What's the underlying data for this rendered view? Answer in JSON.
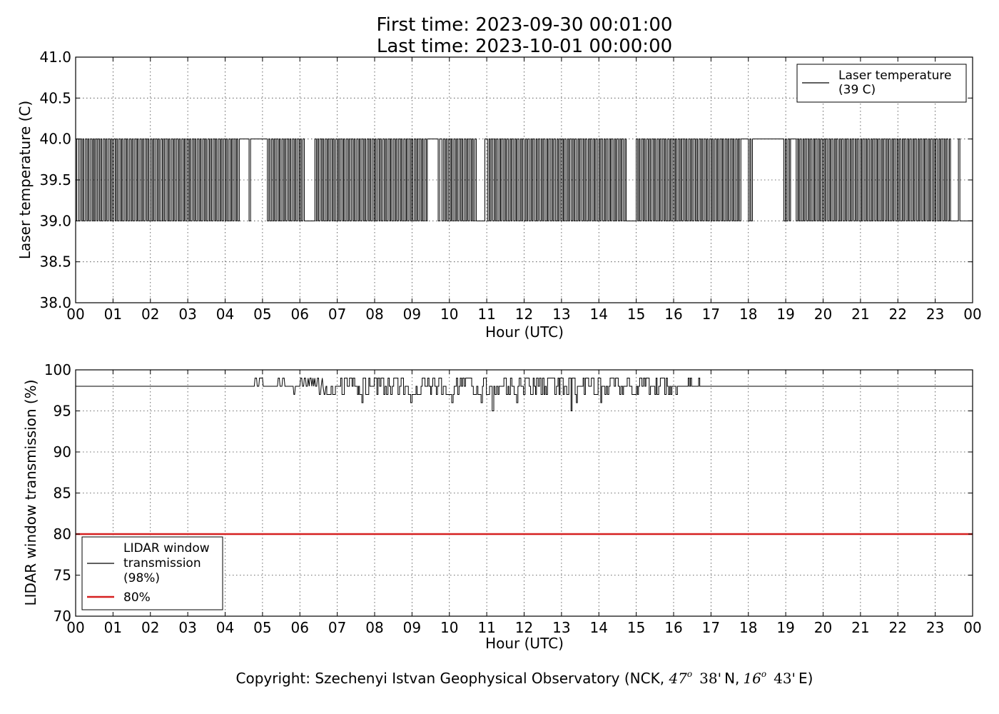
{
  "header": {
    "title_line1": "First time: 2023-09-30 00:01:00",
    "title_line2": "Last time: 2023-10-01 00:00:00"
  },
  "footer": {
    "copyright_prefix": "Copyright: Szechenyi Istvan Geophysical Observatory (NCK, ",
    "lat_deg": "47",
    "lat_min": "38'",
    "lat_dir": "N,",
    "lon_deg": "16",
    "lon_min": "43'",
    "lon_dir": "E)",
    "degree_symbol": "o"
  },
  "colors": {
    "series_line": "#000000",
    "threshold": "#d62020",
    "background": "#ffffff"
  },
  "chart_data": [
    {
      "type": "line",
      "xlabel": "Hour (UTC)",
      "ylabel": "Laser temperature (C)",
      "xlim": [
        0,
        24
      ],
      "ylim": [
        38.0,
        41.0
      ],
      "grid": true,
      "legend_position": "top-right",
      "x_tick_labels": [
        "00",
        "01",
        "02",
        "03",
        "04",
        "05",
        "06",
        "07",
        "08",
        "09",
        "10",
        "11",
        "12",
        "13",
        "14",
        "15",
        "16",
        "17",
        "18",
        "19",
        "20",
        "21",
        "22",
        "23",
        "00"
      ],
      "y_tick_labels": [
        "38.0",
        "38.5",
        "39.0",
        "39.5",
        "40.0",
        "40.5",
        "41.0"
      ],
      "y_ticks": [
        38.0,
        38.5,
        39.0,
        39.5,
        40.0,
        40.5,
        41.0
      ],
      "series": [
        {
          "name_line1": "Laser temperature",
          "name_line2": "(39 C)",
          "step_values": [
            39.0,
            40.0
          ],
          "toggle_times_h": [
            0.0,
            0.03,
            0.08,
            0.12,
            0.16,
            0.19,
            0.22,
            0.26,
            0.3,
            0.33,
            0.36,
            0.4,
            0.44,
            0.47,
            0.5,
            0.53,
            0.57,
            0.6,
            0.64,
            0.67,
            0.7,
            0.74,
            0.78,
            0.81,
            0.84,
            0.88,
            0.92,
            0.95,
            0.98,
            1.02,
            1.06,
            1.09,
            1.12,
            1.16,
            1.2,
            1.23,
            1.26,
            1.3,
            1.34,
            1.37,
            1.4,
            1.44,
            1.48,
            1.51,
            1.54,
            1.58,
            1.62,
            1.65,
            1.68,
            1.72,
            1.76,
            1.79,
            1.82,
            1.86,
            1.9,
            1.93,
            1.96,
            2.0,
            2.04,
            2.07,
            2.1,
            2.14,
            2.18,
            2.21,
            2.24,
            2.28,
            2.32,
            2.35,
            2.38,
            2.42,
            2.46,
            2.49,
            2.52,
            2.56,
            2.6,
            2.63,
            2.66,
            2.7,
            2.74,
            2.77,
            2.8,
            2.84,
            2.88,
            2.91,
            2.94,
            2.98,
            3.02,
            3.05,
            3.08,
            3.12,
            3.16,
            3.19,
            3.22,
            3.26,
            3.3,
            3.33,
            3.36,
            3.4,
            3.44,
            3.47,
            3.5,
            3.54,
            3.58,
            3.61,
            3.64,
            3.68,
            3.72,
            3.75,
            3.78,
            3.82,
            3.86,
            3.89,
            3.92,
            3.96,
            4.0,
            4.03,
            4.06,
            4.1,
            4.14,
            4.17,
            4.2,
            4.24,
            4.28,
            4.31,
            4.34,
            4.38,
            4.64,
            4.68,
            5.13,
            5.17,
            5.2,
            5.24,
            5.28,
            5.31,
            5.34,
            5.38,
            5.42,
            5.45,
            5.48,
            5.52,
            5.56,
            5.59,
            5.62,
            5.66,
            5.7,
            5.73,
            5.76,
            5.8,
            5.84,
            5.87,
            5.9,
            5.94,
            5.98,
            6.01,
            6.04,
            6.08,
            6.12,
            6.4,
            6.44,
            6.47,
            6.5,
            6.54,
            6.58,
            6.61,
            6.64,
            6.68,
            6.72,
            6.75,
            6.78,
            6.82,
            6.86,
            6.89,
            6.92,
            6.96,
            7.0,
            7.03,
            7.06,
            7.1,
            7.14,
            7.17,
            7.2,
            7.24,
            7.28,
            7.31,
            7.34,
            7.38,
            7.42,
            7.45,
            7.48,
            7.52,
            7.56,
            7.59,
            7.62,
            7.66,
            7.7,
            7.73,
            7.76,
            7.8,
            7.84,
            7.87,
            7.9,
            7.94,
            7.98,
            8.01,
            8.04,
            8.08,
            8.12,
            8.15,
            8.18,
            8.22,
            8.26,
            8.29,
            8.32,
            8.36,
            8.4,
            8.43,
            8.46,
            8.5,
            8.54,
            8.57,
            8.6,
            8.64,
            8.68,
            8.71,
            8.74,
            8.78,
            8.82,
            8.85,
            8.88,
            8.92,
            8.96,
            8.99,
            9.02,
            9.06,
            9.1,
            9.13,
            9.16,
            9.2,
            9.24,
            9.27,
            9.3,
            9.34,
            9.38,
            9.41,
            9.7,
            9.74,
            9.8,
            9.84,
            9.88,
            9.91,
            9.94,
            9.98,
            10.02,
            10.05,
            10.08,
            10.12,
            10.16,
            10.19,
            10.22,
            10.26,
            10.3,
            10.33,
            10.36,
            10.4,
            10.44,
            10.47,
            10.5,
            10.54,
            10.58,
            10.61,
            10.64,
            10.68,
            10.72,
            10.95,
            11.02,
            11.06,
            11.09,
            11.12,
            11.16,
            11.2,
            11.23,
            11.26,
            11.3,
            11.34,
            11.37,
            11.4,
            11.44,
            11.48,
            11.51,
            11.54,
            11.58,
            11.62,
            11.65,
            11.68,
            11.72,
            11.76,
            11.79,
            11.82,
            11.86,
            11.9,
            11.93,
            11.96,
            12.0,
            12.04,
            12.07,
            12.1,
            12.14,
            12.18,
            12.21,
            12.24,
            12.28,
            12.32,
            12.35,
            12.38,
            12.42,
            12.46,
            12.49,
            12.52,
            12.56,
            12.6,
            12.63,
            12.66,
            12.7,
            12.74,
            12.77,
            12.8,
            12.84,
            12.88,
            12.91,
            12.94,
            12.98,
            13.02,
            13.05,
            13.08,
            13.12,
            13.16,
            13.19,
            13.22,
            13.26,
            13.3,
            13.33,
            13.36,
            13.4,
            13.44,
            13.47,
            13.5,
            13.54,
            13.58,
            13.61,
            13.64,
            13.68,
            13.72,
            13.75,
            13.78,
            13.82,
            13.86,
            13.89,
            13.92,
            13.96,
            14.0,
            14.03,
            14.06,
            14.1,
            14.14,
            14.17,
            14.2,
            14.24,
            14.28,
            14.31,
            14.34,
            14.38,
            14.42,
            14.45,
            14.48,
            14.52,
            14.56,
            14.59,
            14.62,
            14.66,
            14.7,
            14.73,
            15.0,
            15.04,
            15.07,
            15.1,
            15.14,
            15.18,
            15.21,
            15.24,
            15.28,
            15.32,
            15.35,
            15.38,
            15.42,
            15.46,
            15.49,
            15.52,
            15.56,
            15.6,
            15.63,
            15.66,
            15.7,
            15.74,
            15.77,
            15.8,
            15.84,
            15.88,
            15.91,
            15.94,
            15.98,
            16.02,
            16.05,
            16.08,
            16.12,
            16.16,
            16.19,
            16.22,
            16.26,
            16.3,
            16.33,
            16.36,
            16.4,
            16.44,
            16.47,
            16.5,
            16.54,
            16.58,
            16.61,
            16.64,
            16.68,
            16.72,
            16.75,
            16.78,
            16.82,
            16.86,
            16.89,
            16.92,
            16.96,
            17.0,
            17.03,
            17.06,
            17.1,
            17.14,
            17.17,
            17.2,
            17.24,
            17.28,
            17.31,
            17.34,
            17.38,
            17.42,
            17.45,
            17.48,
            17.52,
            17.56,
            17.59,
            17.62,
            17.66,
            17.7,
            17.73,
            17.76,
            17.8,
            18.0,
            18.04,
            18.07,
            18.11,
            18.95,
            18.99,
            19.02,
            19.06,
            19.1,
            19.13,
            19.28,
            19.32,
            19.35,
            19.38,
            19.42,
            19.46,
            19.49,
            19.52,
            19.56,
            19.6,
            19.63,
            19.66,
            19.7,
            19.74,
            19.77,
            19.8,
            19.84,
            19.88,
            19.91,
            19.94,
            19.98,
            20.02,
            20.05,
            20.08,
            20.12,
            20.16,
            20.19,
            20.22,
            20.26,
            20.3,
            20.33,
            20.36,
            20.4,
            20.44,
            20.47,
            20.5,
            20.54,
            20.58,
            20.61,
            20.64,
            20.68,
            20.72,
            20.75,
            20.78,
            20.82,
            20.86,
            20.89,
            20.92,
            20.96,
            21.0,
            21.03,
            21.06,
            21.1,
            21.14,
            21.17,
            21.2,
            21.24,
            21.28,
            21.31,
            21.34,
            21.38,
            21.42,
            21.45,
            21.48,
            21.52,
            21.56,
            21.59,
            21.62,
            21.66,
            21.7,
            21.73,
            21.76,
            21.8,
            21.84,
            21.87,
            21.9,
            21.94,
            21.98,
            22.01,
            22.04,
            22.08,
            22.12,
            22.15,
            22.18,
            22.22,
            22.26,
            22.29,
            22.32,
            22.36,
            22.4,
            22.43,
            22.46,
            22.5,
            22.54,
            22.57,
            22.6,
            22.64,
            22.68,
            22.71,
            22.74,
            22.78,
            22.82,
            22.85,
            22.88,
            22.92,
            22.96,
            22.99,
            23.02,
            23.06,
            23.1,
            23.13,
            23.16,
            23.2,
            23.24,
            23.27,
            23.3,
            23.34,
            23.38,
            23.41,
            23.62,
            23.66,
            24.0
          ]
        }
      ]
    },
    {
      "type": "line",
      "xlabel": "Hour (UTC)",
      "ylabel": "LIDAR window transmission (%)",
      "xlim": [
        0,
        24
      ],
      "ylim": [
        70,
        100
      ],
      "grid": true,
      "legend_position": "bottom-left",
      "x_tick_labels": [
        "00",
        "01",
        "02",
        "03",
        "04",
        "05",
        "06",
        "07",
        "08",
        "09",
        "10",
        "11",
        "12",
        "13",
        "14",
        "15",
        "16",
        "17",
        "18",
        "19",
        "20",
        "21",
        "22",
        "23",
        "00"
      ],
      "y_tick_labels": [
        "70",
        "75",
        "80",
        "85",
        "90",
        "95",
        "100"
      ],
      "y_ticks": [
        70,
        75,
        80,
        85,
        90,
        95,
        100
      ],
      "series": [
        {
          "name_line1": "LIDAR window",
          "name_line2": "transmission",
          "name_line3": "(98%)",
          "baseline_value": 98,
          "segments": [
            {
              "x": [
                0.0,
                4.78,
                4.8,
                4.84,
                4.86,
                4.9,
                4.92,
                5.0,
                5.02,
                5.06,
                5.08,
                5.4,
                5.42,
                5.45,
                5.47,
                5.52,
                5.54,
                5.58,
                5.6,
                5.82,
                5.84,
                5.86,
                5.88,
                6.0,
                6.02,
                6.05,
                6.07,
                6.1,
                6.12,
                6.15,
                6.17,
                6.2,
                6.22,
                6.25,
                6.27,
                6.3,
                6.32,
                6.35,
                6.37,
                6.4,
                6.42,
                6.45,
                6.47,
                6.5,
                6.52,
                6.55,
                6.57,
                6.6,
                6.62,
                6.65,
                6.67,
                6.7,
                6.72
              ],
              "y": [
                98,
                98,
                99,
                99,
                98,
                98,
                99,
                99,
                98,
                98,
                98,
                98,
                99,
                99,
                98,
                98,
                99,
                99,
                98,
                98,
                97,
                97,
                98,
                98,
                99,
                99,
                98,
                98,
                99,
                99,
                98,
                98,
                99,
                98,
                99,
                99,
                98,
                99,
                98,
                99,
                98,
                98,
                99,
                99,
                97,
                97,
                98,
                99,
                98,
                97,
                97,
                98,
                98
              ]
            }
          ],
          "dense_region": {
            "x_start": 6.72,
            "x_end": 16.1,
            "min": 95,
            "max": 99
          },
          "late_spikes": [
            {
              "x": 16.4,
              "y": 99
            },
            {
              "x": 16.46,
              "y": 99
            },
            {
              "x": 16.68,
              "y": 99
            }
          ],
          "notable_dips": [
            {
              "x": 7.65,
              "y": 96
            },
            {
              "x": 8.95,
              "y": 96
            },
            {
              "x": 10.05,
              "y": 96
            },
            {
              "x": 10.85,
              "y": 96
            },
            {
              "x": 11.15,
              "y": 95
            },
            {
              "x": 11.8,
              "y": 96
            },
            {
              "x": 13.25,
              "y": 95
            },
            {
              "x": 13.4,
              "y": 96
            },
            {
              "x": 14.05,
              "y": 96
            }
          ]
        },
        {
          "name": "80%",
          "value": 80,
          "color": "#d62020"
        }
      ]
    }
  ]
}
